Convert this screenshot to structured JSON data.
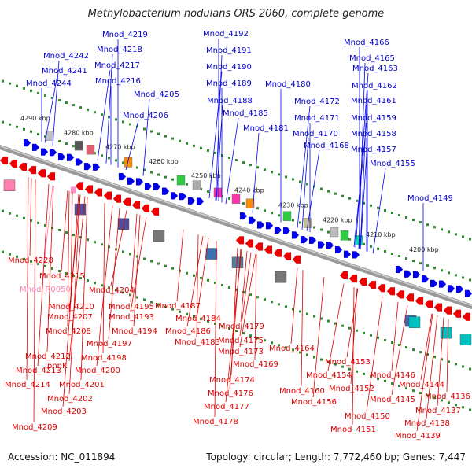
{
  "title": "Methylobacterium nodulans ORS 2060, complete genome",
  "footer": {
    "accession": "Accession: NC_011894",
    "summary": "Topology: circular; Length: 7,772,460 bp; Genes: 7,447"
  },
  "colors": {
    "forward_gene": "#0000ee",
    "reverse_gene": "#ee0000",
    "rna_gene": "#ff8fc8",
    "scale_dot": "#2e8b2e",
    "backbone": "#808080"
  },
  "kbp_labels": [
    "4290 kbp",
    "4280 kbp",
    "4270 kbp",
    "4260 kbp",
    "4250 kbp",
    "4240 kbp",
    "4230 kbp",
    "4220 kbp",
    "4210 kbp",
    "4200 kbp"
  ],
  "top_labels": [
    "Mnod_4219",
    "Mnod_4218",
    "Mnod_4217",
    "Mnod_4216",
    "Mnod_4242",
    "Mnod_4241",
    "Mnod_4244",
    "Mnod_4205",
    "Mnod_4206",
    "Mnod_4192",
    "Mnod_4191",
    "Mnod_4190",
    "Mnod_4189",
    "Mnod_4188",
    "Mnod_4185",
    "Mnod_4180",
    "Mnod_4181",
    "Mnod_4172",
    "Mnod_4171",
    "Mnod_4170",
    "Mnod_4168",
    "Mnod_4166",
    "Mnod_4165",
    "Mnod_4163",
    "Mnod_4162",
    "Mnod_4161",
    "Mnod_4159",
    "Mnod_4158",
    "Mnod_4157",
    "Mnod_4155",
    "Mnod_4149"
  ],
  "bottom_labels": [
    "Mnod_4228",
    "Mnod_4215",
    "Mnod_R0050",
    "Mnod_4204",
    "Mnod_4210",
    "Mnod_4195",
    "Mnod_4207",
    "Mnod_4193",
    "Mnod_4208",
    "Mnod_4194",
    "Mnod_4197",
    "pnnK",
    "Mnod_4198",
    "Mnod_4212",
    "Mnod_4213",
    "Mnod_4200",
    "Mnod_4214",
    "Mnod_4201",
    "Mnod_4202",
    "Mnod_4203",
    "Mnod_4209",
    "Mnod_4187",
    "Mnod_4184",
    "Mnod_4186",
    "Mnod_4183",
    "Mnod_4179",
    "Mnod_4175",
    "Mnod_4173",
    "Mnod_4169",
    "Mnod_4174",
    "Mnod_4176",
    "Mnod_4177",
    "Mnod_4178",
    "Mnod_4164",
    "Mnod_4153",
    "Mnod_4154",
    "Mnod_4160",
    "Mnod_4152",
    "Mnod_4156",
    "Mnod_4150",
    "Mnod_4151",
    "Mnod_4146",
    "Mnod_4144",
    "Mnod_4145",
    "Mnod_4136",
    "Mnod_4137",
    "Mnod_4138",
    "Mnod_4139"
  ]
}
